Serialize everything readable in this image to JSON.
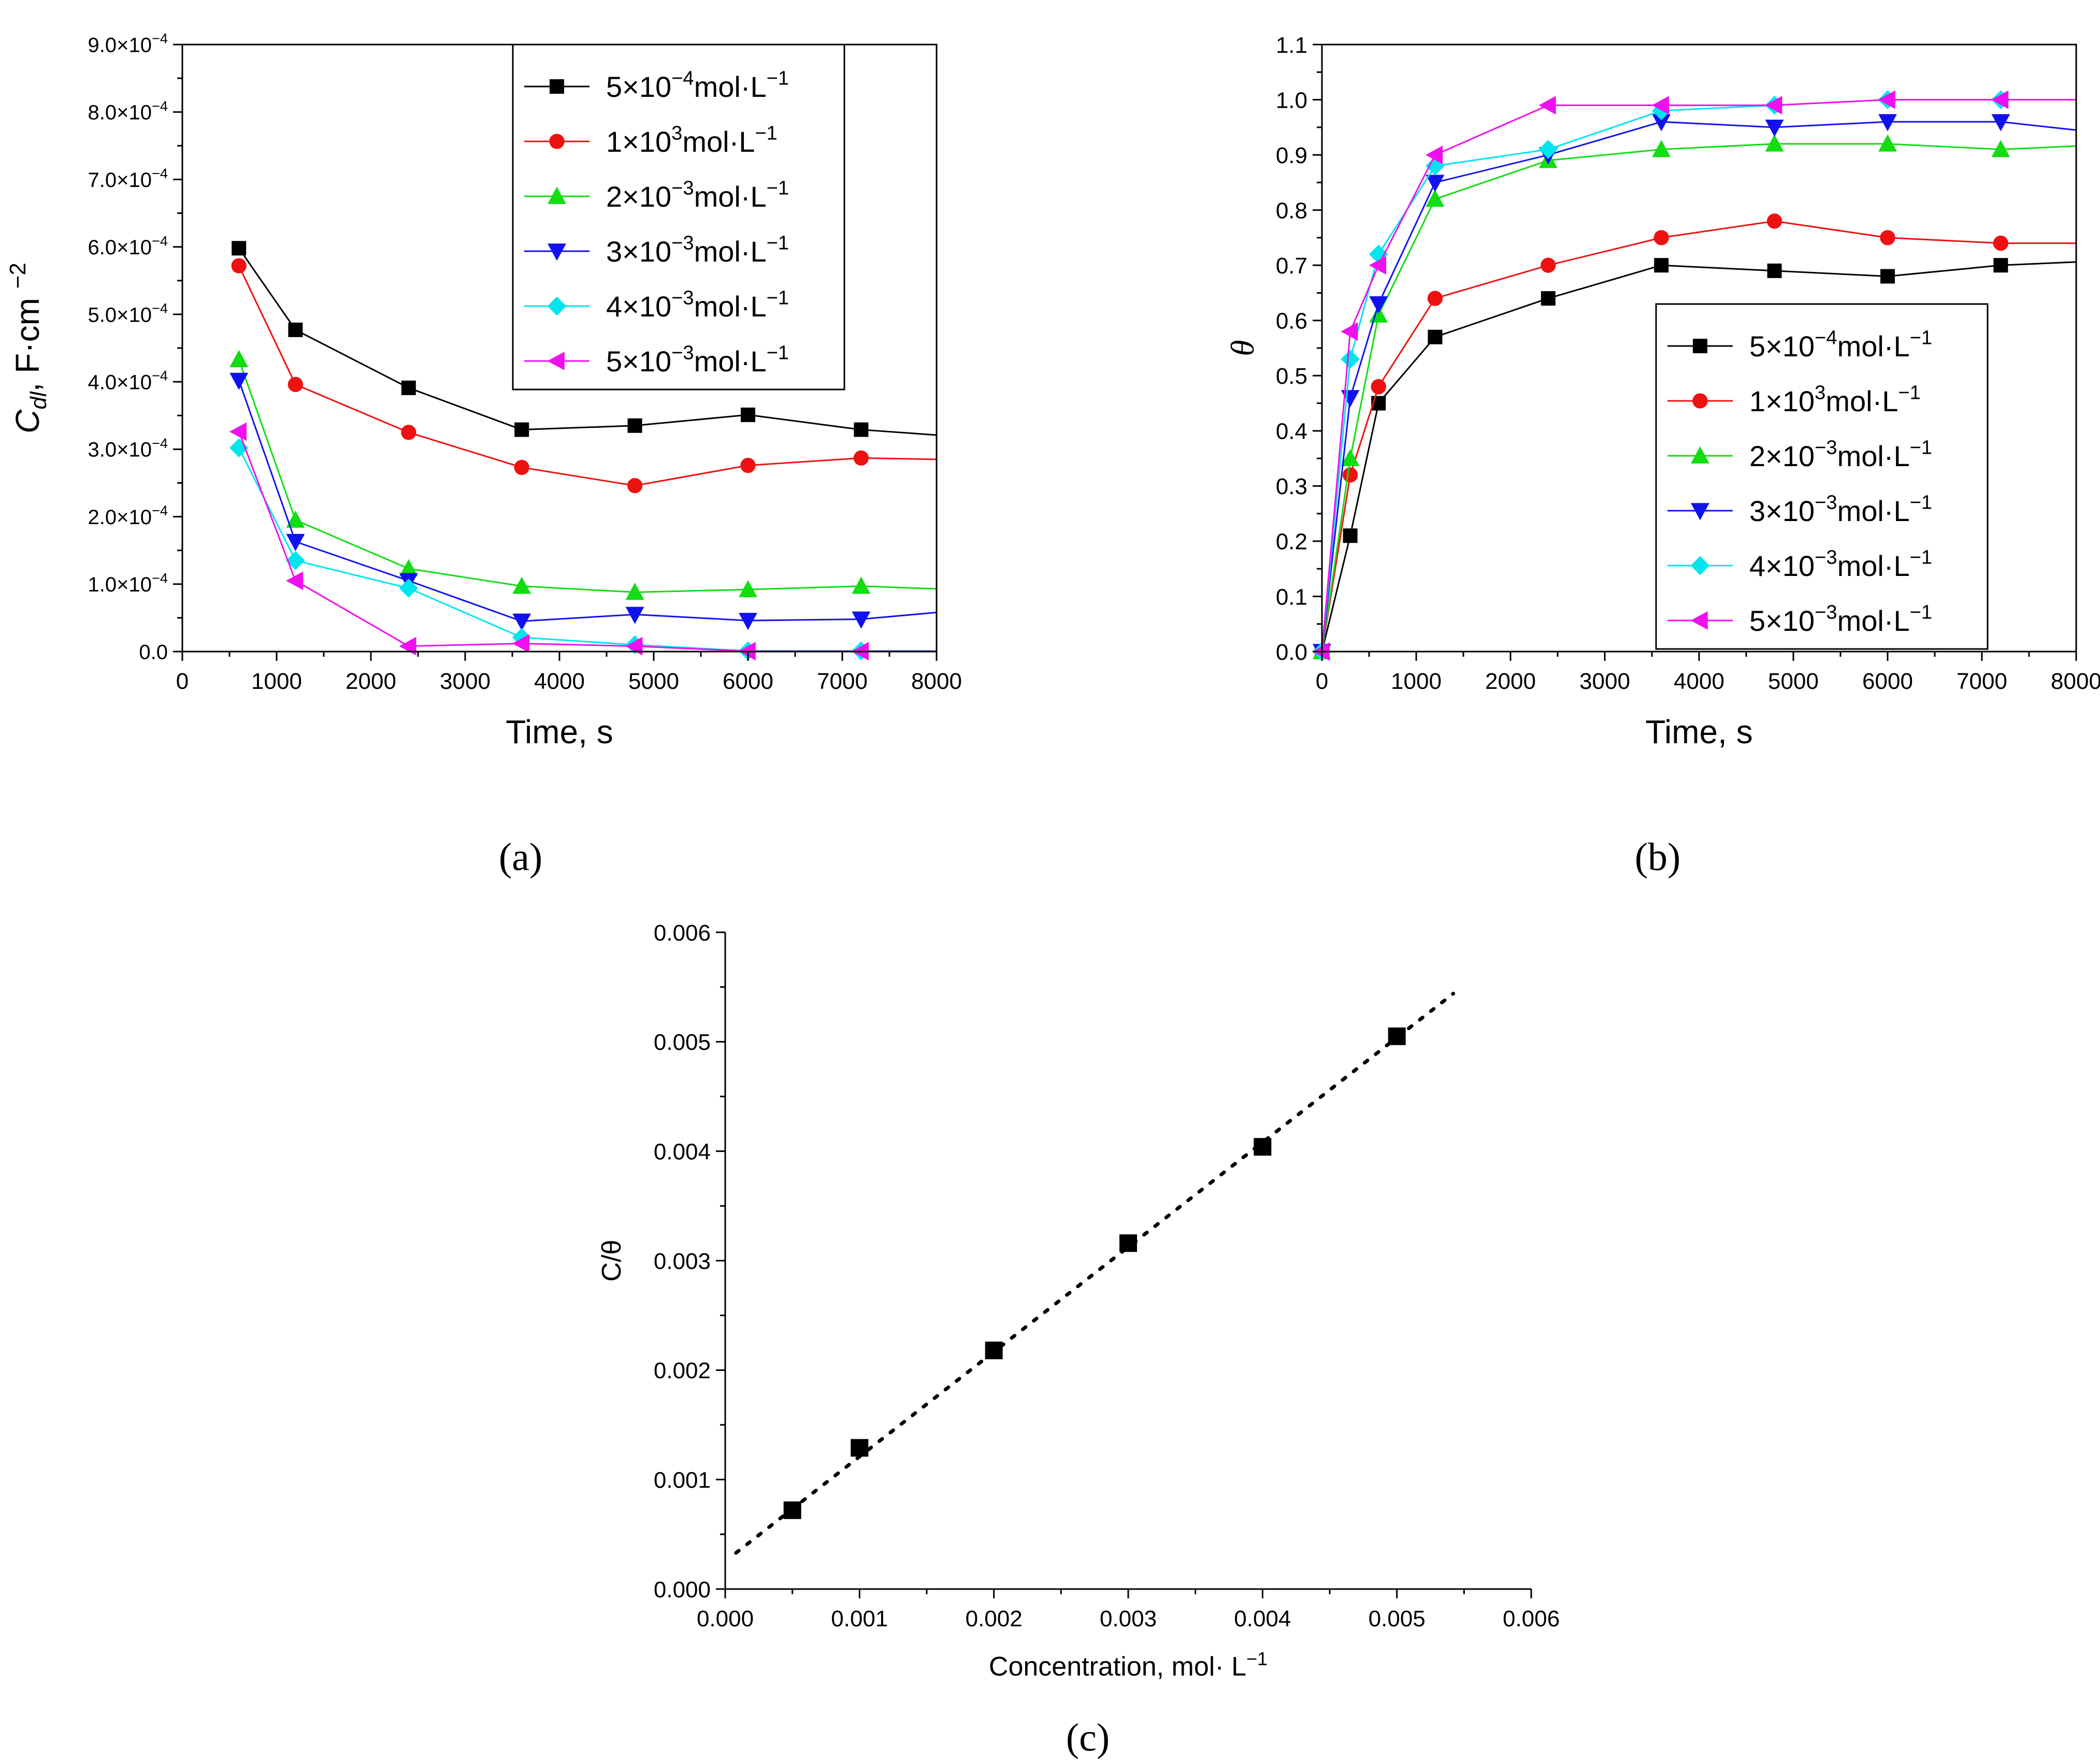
{
  "chart_data": [
    {
      "type": "line",
      "panel_label": "(a)",
      "xlabel": "Time, s",
      "ylabel": "Cdl, F·cm⁻²",
      "xlim": [
        0,
        8000
      ],
      "ylim": [
        0,
        0.0009
      ],
      "x_ticks": [
        "0",
        "1000",
        "2000",
        "3000",
        "4000",
        "5000",
        "6000",
        "7000",
        "8000"
      ],
      "y_ticks": [
        "0.0",
        "1.0×10⁻⁴",
        "2.0×10⁻⁴",
        "3.0×10⁻⁴",
        "4.0×10⁻⁴",
        "5.0×10⁻⁴",
        "6.0×10⁻⁴",
        "7.0×10⁻⁴",
        "8.0×10⁻⁴",
        "9.0×10⁻⁴"
      ],
      "legend_position": "top-right",
      "x": [
        600,
        1200,
        2400,
        3600,
        4800,
        6000,
        7200
      ],
      "series": [
        {
          "name": "5×10⁻⁴mol·L⁻¹",
          "color": "#000000",
          "marker": "square",
          "values": [
            0.000598,
            0.000477,
            0.000391,
            0.000329,
            0.000335,
            0.000351,
            0.000329
          ],
          "tail": [
            8000,
            0.000321
          ]
        },
        {
          "name": "1×10³mol·L⁻¹",
          "color": "#ee1111",
          "marker": "circle",
          "values": [
            0.000572,
            0.000396,
            0.000325,
            0.000273,
            0.000246,
            0.000276,
            0.000287
          ],
          "tail": [
            8000,
            0.000285
          ]
        },
        {
          "name": "2×10⁻³mol·L⁻¹",
          "color": "#11dd11",
          "marker": "triangle-up",
          "values": [
            0.000433,
            0.000195,
            0.000123,
            9.7e-05,
            8.8e-05,
            9.2e-05,
            9.7e-05
          ],
          "tail": [
            8000,
            9.3e-05
          ]
        },
        {
          "name": "3×10⁻³mol·L⁻¹",
          "color": "#1111ee",
          "marker": "triangle-down",
          "values": [
            0.000402,
            0.000163,
            0.000105,
            4.5e-05,
            5.5e-05,
            4.6e-05,
            4.8e-05
          ],
          "tail": [
            8000,
            5.8e-05
          ]
        },
        {
          "name": "4×10⁻³mol·L⁻¹",
          "color": "#00e5ee",
          "marker": "diamond",
          "values": [
            0.000302,
            0.000135,
            9.4e-05,
            2.1e-05,
            1e-05,
            1e-06,
            1e-06
          ],
          "tail": [
            8000,
            1e-06
          ]
        },
        {
          "name": "5×10⁻³mol·L⁻¹",
          "color": "#ee11ee",
          "marker": "triangle-left",
          "values": [
            0.000326,
            0.000105,
            8e-06,
            1.2e-05,
            8e-06,
            5e-07,
            5e-07
          ],
          "tail": [
            8000,
            5e-07
          ]
        }
      ]
    },
    {
      "type": "line",
      "panel_label": "(b)",
      "xlabel": "Time, s",
      "ylabel": "θ",
      "xlim": [
        0,
        8000
      ],
      "ylim": [
        0,
        1.1
      ],
      "x_ticks": [
        "0",
        "1000",
        "2000",
        "3000",
        "4000",
        "5000",
        "6000",
        "7000",
        "8000"
      ],
      "y_ticks": [
        "0.0",
        "0.1",
        "0.2",
        "0.3",
        "0.4",
        "0.5",
        "0.6",
        "0.7",
        "0.8",
        "0.9",
        "1.0",
        "1.1"
      ],
      "legend_position": "bottom-right",
      "x": [
        0,
        300,
        600,
        1200,
        2400,
        3600,
        4800,
        6000,
        7200
      ],
      "series": [
        {
          "name": "5×10⁻⁴mol·L⁻¹",
          "color": "#000000",
          "marker": "square",
          "values": [
            0.0,
            0.21,
            0.45,
            0.57,
            0.64,
            0.7,
            0.69,
            0.68,
            0.7
          ],
          "tail": [
            8000,
            0.706
          ]
        },
        {
          "name": "1×10³mol·L⁻¹",
          "color": "#ee1111",
          "marker": "circle",
          "values": [
            0.0,
            0.32,
            0.48,
            0.64,
            0.7,
            0.75,
            0.78,
            0.75,
            0.74
          ],
          "tail": [
            8000,
            0.74
          ]
        },
        {
          "name": "2×10⁻³mol·L⁻¹",
          "color": "#11dd11",
          "marker": "triangle-up",
          "values": [
            0.0,
            0.35,
            0.61,
            0.82,
            0.89,
            0.91,
            0.92,
            0.92,
            0.91
          ],
          "tail": [
            8000,
            0.916
          ]
        },
        {
          "name": "3×10⁻³mol·L⁻¹",
          "color": "#1111ee",
          "marker": "triangle-down",
          "values": [
            0.0,
            0.46,
            0.63,
            0.85,
            0.9,
            0.96,
            0.95,
            0.96,
            0.96
          ],
          "tail": [
            8000,
            0.945
          ]
        },
        {
          "name": "4×10⁻³mol·L⁻¹",
          "color": "#00e5ee",
          "marker": "diamond",
          "values": [
            0.0,
            0.53,
            0.72,
            0.88,
            0.91,
            0.98,
            0.99,
            1.0,
            1.0
          ],
          "tail": [
            8000,
            1.0
          ]
        },
        {
          "name": "5×10⁻³mol·L⁻¹",
          "color": "#ee11ee",
          "marker": "triangle-left",
          "values": [
            0.0,
            0.58,
            0.7,
            0.9,
            0.99,
            0.99,
            0.99,
            1.0,
            1.0
          ],
          "tail": [
            8000,
            1.0
          ]
        }
      ]
    },
    {
      "type": "scatter",
      "panel_label": "(c)",
      "xlabel": "Concentration, mol· L⁻¹",
      "ylabel": "C/θ",
      "xlim": [
        0,
        0.006
      ],
      "ylim": [
        0,
        0.006
      ],
      "x_ticks": [
        "0.000",
        "0.001",
        "0.002",
        "0.003",
        "0.004",
        "0.005",
        "0.006"
      ],
      "y_ticks": [
        "0.000",
        "0.001",
        "0.002",
        "0.003",
        "0.004",
        "0.005",
        "0.006"
      ],
      "points": {
        "x": [
          0.0005,
          0.001,
          0.002,
          0.003,
          0.004,
          0.005
        ],
        "y": [
          0.00072,
          0.00129,
          0.00218,
          0.00316,
          0.00404,
          0.00505
        ]
      },
      "fit_line": {
        "x": [
          8e-05,
          0.00542
        ],
        "y": [
          0.00033,
          0.00544
        ],
        "style": "dotted"
      },
      "color": "#000000"
    }
  ]
}
